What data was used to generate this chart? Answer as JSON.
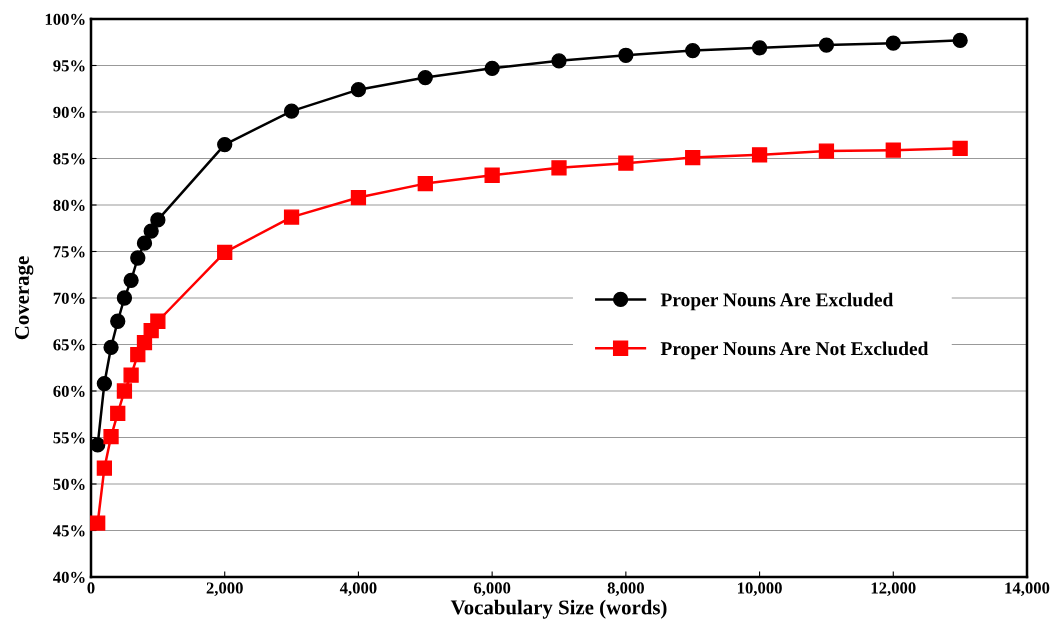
{
  "chart_data": {
    "type": "line",
    "xlabel": "Vocabulary Size (words)",
    "ylabel": "Coverage",
    "x": [
      100,
      200,
      300,
      400,
      500,
      600,
      700,
      800,
      900,
      1000,
      2000,
      3000,
      4000,
      5000,
      6000,
      7000,
      8000,
      9000,
      10000,
      11000,
      12000,
      13000
    ],
    "series": [
      {
        "name": "Proper Nouns Are Excluded",
        "color": "#000000",
        "marker": "circle",
        "values": [
          54.2,
          60.8,
          64.7,
          67.5,
          70.0,
          71.9,
          74.3,
          75.9,
          77.2,
          78.4,
          86.5,
          90.1,
          92.4,
          93.7,
          94.7,
          95.5,
          96.1,
          96.6,
          96.9,
          97.2,
          97.4,
          97.7
        ]
      },
      {
        "name": "Proper Nouns Are Not Excluded",
        "color": "#ff0000",
        "marker": "square",
        "values": [
          45.8,
          51.7,
          55.1,
          57.6,
          60.0,
          61.7,
          63.9,
          65.2,
          66.5,
          67.5,
          74.9,
          78.7,
          80.8,
          82.3,
          83.2,
          84.0,
          84.5,
          85.1,
          85.4,
          85.8,
          85.9,
          86.1
        ]
      }
    ],
    "xlim": [
      0,
      14000
    ],
    "xticks": [
      0,
      {
        "value": 2000,
        "label": "2,000"
      },
      {
        "value": 4000,
        "label": "4,000"
      },
      {
        "value": 6000,
        "label": "6,000"
      },
      {
        "value": 8000,
        "label": "8,000"
      },
      {
        "value": 10000,
        "label": "10,000"
      },
      {
        "value": 12000,
        "label": "12,000"
      },
      {
        "value": 14000,
        "label": "14,000"
      }
    ],
    "ylim": [
      40,
      100
    ],
    "yticks": [
      {
        "value": 40,
        "label": "40%"
      },
      {
        "value": 45,
        "label": "45%"
      },
      {
        "value": 50,
        "label": "50%"
      },
      {
        "value": 55,
        "label": "55%"
      },
      {
        "value": 60,
        "label": "60%"
      },
      {
        "value": 65,
        "label": "65%"
      },
      {
        "value": 70,
        "label": "70%"
      },
      {
        "value": 75,
        "label": "75%"
      },
      {
        "value": 80,
        "label": "80%"
      },
      {
        "value": 85,
        "label": "85%"
      },
      {
        "value": 90,
        "label": "90%"
      },
      {
        "value": 95,
        "label": "95%"
      },
      {
        "value": 100,
        "label": "100%"
      }
    ],
    "grid": "y",
    "legend": "center right",
    "line_style": "solid"
  }
}
